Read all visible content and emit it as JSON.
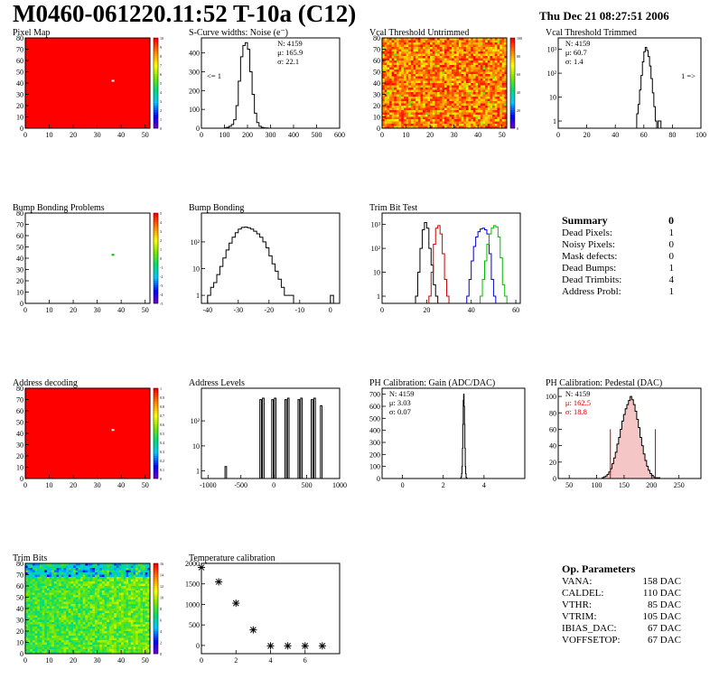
{
  "page": {
    "title": "M0460-061220.11:52 T-10a (C12)",
    "date": "Thu Dec 21 08:27:51 2006"
  },
  "summary": {
    "title": "Summary",
    "total": "0",
    "rows": [
      {
        "label": "Dead Pixels:",
        "value": "1"
      },
      {
        "label": "Noisy Pixels:",
        "value": "0"
      },
      {
        "label": "Mask defects:",
        "value": "0"
      },
      {
        "label": "Dead Bumps:",
        "value": "1"
      },
      {
        "label": "Dead Trimbits:",
        "value": "4"
      },
      {
        "label": "Address Probl:",
        "value": "1"
      }
    ]
  },
  "op_params": {
    "title": "Op. Parameters",
    "rows": [
      {
        "label": "VANA:",
        "value": "158 DAC"
      },
      {
        "label": "CALDEL:",
        "value": "110 DAC"
      },
      {
        "label": "VTHR:",
        "value": "85 DAC"
      },
      {
        "label": "VTRIM:",
        "value": "105 DAC"
      },
      {
        "label": "IBIAS_DAC:",
        "value": "67 DAC"
      },
      {
        "label": "VOFFSETOP:",
        "value": "67 DAC"
      }
    ]
  },
  "chart_data": [
    {
      "id": "pixel-map",
      "type": "heatmap",
      "title": "Pixel Map",
      "fill": "uniform-red",
      "xlim": [
        0,
        52
      ],
      "ylim": [
        0,
        80
      ],
      "xticks": [
        0,
        10,
        20,
        30,
        40,
        50
      ],
      "yticks": [
        0,
        10,
        20,
        30,
        40,
        50,
        60,
        70,
        80
      ],
      "z_ticks": [
        "10",
        "9",
        "8",
        "7",
        "6",
        "5",
        "4",
        "3",
        "2",
        "1",
        "0"
      ],
      "marker": {
        "x": 36,
        "y": 42
      }
    },
    {
      "id": "scurve-widths",
      "type": "bar",
      "title": "S-Curve widths: Noise (e⁻)",
      "xlim": [
        0,
        600
      ],
      "ylim": [
        0,
        480
      ],
      "xticks": [
        0,
        100,
        200,
        300,
        400,
        500,
        600
      ],
      "yticks": [
        0,
        100,
        200,
        300,
        400
      ],
      "stats": [
        "N: 4159",
        "μ: 165.9",
        "σ: 22.1"
      ],
      "annotation": "<= 1",
      "bin_width": 10,
      "bin_start": 100,
      "values": [
        2,
        5,
        10,
        20,
        45,
        120,
        250,
        380,
        440,
        455,
        420,
        300,
        180,
        80,
        30,
        10,
        4,
        2,
        1
      ]
    },
    {
      "id": "vcal-untrimmed",
      "type": "heatmap",
      "title": "Vcal Threshold Untrimmed",
      "fill": "noisy-orange",
      "xlim": [
        0,
        52
      ],
      "ylim": [
        0,
        80
      ],
      "xticks": [
        0,
        10,
        20,
        30,
        40,
        50
      ],
      "yticks": [
        0,
        10,
        20,
        30,
        40,
        50,
        60,
        70,
        80
      ],
      "z_ticks": [
        "100",
        "80",
        "60",
        "40",
        "20",
        "0"
      ]
    },
    {
      "id": "vcal-trimmed",
      "type": "bar",
      "title": "Vcal Threshold Trimmed",
      "log": true,
      "xlim": [
        0,
        100
      ],
      "ylim": [
        0.5,
        3000
      ],
      "xticks": [
        0,
        20,
        40,
        60,
        80,
        100
      ],
      "yticks": [
        1,
        10,
        100,
        1000
      ],
      "ytick_labels": [
        "1",
        "10",
        "10²",
        "10³"
      ],
      "stats": [
        "N: 4159",
        "μ: 60.7",
        "σ: 1.4"
      ],
      "annotation": "1 =>",
      "bin_width": 1,
      "bin_start": 55,
      "values": [
        2,
        5,
        20,
        80,
        300,
        800,
        1200,
        900,
        500,
        200,
        60,
        15,
        4,
        1,
        0,
        1,
        1
      ]
    },
    {
      "id": "bump-map",
      "type": "heatmap",
      "title": "Bump Bonding Problems",
      "fill": "empty",
      "xlim": [
        0,
        52
      ],
      "ylim": [
        0,
        80
      ],
      "xticks": [
        0,
        10,
        20,
        30,
        40,
        50
      ],
      "yticks": [
        0,
        10,
        20,
        30,
        40,
        50,
        60,
        70,
        80
      ],
      "z_ticks": [
        "5",
        "4",
        "3",
        "2",
        "1",
        "0",
        "-1",
        "-2",
        "-3",
        "-4",
        "-5"
      ],
      "marker": {
        "x": 36,
        "y": 43
      }
    },
    {
      "id": "bump-bonding",
      "type": "bar",
      "title": "Bump Bonding",
      "log": true,
      "xlim": [
        -42,
        3
      ],
      "ylim": [
        0.5,
        1200
      ],
      "xticks": [
        -40,
        -30,
        -20,
        -10,
        0
      ],
      "yticks": [
        1,
        10,
        100
      ],
      "ytick_labels": [
        "1",
        "10",
        "10²"
      ],
      "bin_width": 1,
      "bin_start": -40,
      "values": [
        1,
        2,
        3,
        6,
        12,
        25,
        50,
        90,
        150,
        220,
        300,
        350,
        360,
        340,
        300,
        250,
        200,
        150,
        100,
        60,
        30,
        15,
        8,
        4,
        2,
        1,
        1,
        1,
        0,
        0,
        0,
        0,
        0,
        0,
        0,
        0,
        0,
        0,
        0,
        0,
        1
      ]
    },
    {
      "id": "trim-bit-test",
      "type": "line",
      "title": "Trim Bit Test",
      "log": true,
      "xlim": [
        0,
        62
      ],
      "ylim": [
        0.5,
        3000
      ],
      "xticks": [
        0,
        20,
        40,
        60
      ],
      "yticks": [
        1,
        10,
        100,
        1000
      ],
      "ytick_labels": [
        "1",
        "10",
        "10²",
        "10³"
      ],
      "series": [
        {
          "color": "#000000",
          "bin_start": 15,
          "values": [
            1,
            10,
            100,
            600,
            1200,
            700,
            100,
            20,
            3,
            1
          ]
        },
        {
          "color": "#cc0000",
          "bin_start": 21,
          "values": [
            1,
            10,
            150,
            700,
            900,
            400,
            60,
            5,
            1
          ]
        },
        {
          "color": "#0000cc",
          "bin_start": 38,
          "values": [
            1,
            5,
            30,
            120,
            300,
            500,
            650,
            700,
            600,
            400,
            60,
            5,
            1
          ]
        },
        {
          "color": "#00bb00",
          "bin_start": 44,
          "values": [
            1,
            5,
            30,
            150,
            400,
            700,
            900,
            800,
            300,
            40,
            3,
            1
          ]
        }
      ]
    },
    {
      "id": "address-decoding",
      "type": "heatmap",
      "title": "Address decoding",
      "fill": "uniform-red",
      "xlim": [
        0,
        52
      ],
      "ylim": [
        0,
        80
      ],
      "xticks": [
        0,
        10,
        20,
        30,
        40,
        50
      ],
      "yticks": [
        0,
        10,
        20,
        30,
        40,
        50,
        60,
        70,
        80
      ],
      "z_ticks": [
        "1",
        "0.9",
        "0.8",
        "0.7",
        "0.6",
        "0.5",
        "0.4",
        "0.3",
        "0.2",
        "0.1",
        "0"
      ],
      "marker": {
        "x": 36,
        "y": 43
      }
    },
    {
      "id": "address-levels",
      "type": "bar",
      "title": "Address Levels",
      "log": true,
      "xlim": [
        -1100,
        1000
      ],
      "ylim": [
        0.5,
        2000
      ],
      "xticks": [
        -1000,
        -500,
        0,
        500,
        1000
      ],
      "yticks": [
        1,
        10,
        100
      ],
      "ytick_labels": [
        "1",
        "10",
        "10²"
      ],
      "peaks": [
        {
          "x": -730,
          "h": 1.5
        },
        {
          "x": -200,
          "h": 700
        },
        {
          "x": -160,
          "h": 800
        },
        {
          "x": -20,
          "h": 700
        },
        {
          "x": 20,
          "h": 800
        },
        {
          "x": 180,
          "h": 700
        },
        {
          "x": 220,
          "h": 800
        },
        {
          "x": 380,
          "h": 700
        },
        {
          "x": 420,
          "h": 800
        },
        {
          "x": 580,
          "h": 700
        },
        {
          "x": 620,
          "h": 800
        },
        {
          "x": 720,
          "h": 400
        }
      ]
    },
    {
      "id": "ph-gain",
      "type": "bar",
      "title": "PH Calibration: Gain (ADC/DAC)",
      "xlim": [
        -1,
        6
      ],
      "ylim": [
        0,
        750
      ],
      "xticks": [
        0,
        2,
        4
      ],
      "yticks": [
        0,
        100,
        200,
        300,
        400,
        500,
        600,
        700
      ],
      "stats": [
        "N: 4159",
        "μ: 3.03",
        "σ: 0.07"
      ],
      "bin_width": 0.02,
      "bin_start": 2.84,
      "values": [
        2,
        5,
        15,
        40,
        100,
        250,
        450,
        650,
        700,
        600,
        450,
        250,
        100,
        40,
        10,
        3,
        1
      ]
    },
    {
      "id": "ph-pedestal",
      "type": "bar",
      "title": "PH Calibration: Pedestal (DAC)",
      "xlim": [
        30,
        290
      ],
      "ylim": [
        0,
        110
      ],
      "xticks": [
        50,
        100,
        150,
        200,
        250
      ],
      "yticks": [
        0,
        20,
        40,
        60,
        80,
        100
      ],
      "stats": [
        "N: 4159",
        "μ: 162.5",
        "σ: 18.8"
      ],
      "stat_colors": [
        "#000000",
        "#cc0000",
        "#cc0000"
      ],
      "cut_lines": [
        125,
        207
      ],
      "bin_width": 3,
      "bin_start": 110,
      "values": [
        1,
        2,
        3,
        5,
        8,
        12,
        18,
        25,
        32,
        42,
        50,
        60,
        70,
        78,
        85,
        90,
        95,
        100,
        96,
        90,
        82,
        72,
        62,
        50,
        40,
        30,
        22,
        15,
        10,
        6,
        4,
        2,
        1,
        1,
        1
      ]
    },
    {
      "id": "trim-bits",
      "type": "heatmap",
      "title": "Trim Bits",
      "fill": "noisy-green",
      "xlim": [
        0,
        52
      ],
      "ylim": [
        0,
        80
      ],
      "xticks": [
        0,
        10,
        20,
        30,
        40,
        50
      ],
      "yticks": [
        0,
        10,
        20,
        30,
        40,
        50,
        60,
        70,
        80
      ],
      "z_ticks": [
        "16",
        "14",
        "12",
        "10",
        "8",
        "6",
        "4",
        "2",
        "0"
      ]
    },
    {
      "id": "temperature-calibration",
      "type": "scatter",
      "title": "Temperature calibration",
      "xlim": [
        0,
        8
      ],
      "ylim": [
        -200,
        2000
      ],
      "xticks": [
        0,
        2,
        4,
        6
      ],
      "yticks": [
        0,
        500,
        1000,
        1500,
        2000
      ],
      "points": [
        [
          0,
          1900
        ],
        [
          1,
          1550
        ],
        [
          2,
          1030
        ],
        [
          3,
          380
        ],
        [
          4,
          -10
        ],
        [
          5,
          -10
        ],
        [
          6,
          -10
        ],
        [
          7,
          -10
        ]
      ]
    }
  ]
}
